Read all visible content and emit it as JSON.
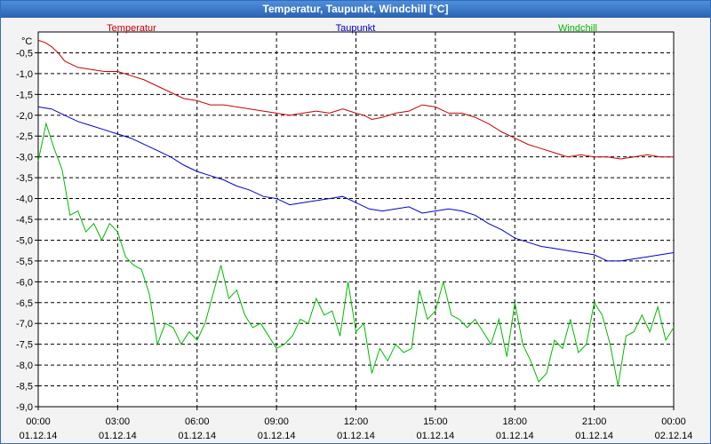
{
  "window": {
    "title": "Temperatur, Taupunkt, Windchill [°C]"
  },
  "chart_data": {
    "type": "line",
    "title": "Temperatur, Taupunkt, Windchill [°C]",
    "ylabel": "°C",
    "ylim": [
      -9.0,
      0.0
    ],
    "y_ticks": [
      "-0,5",
      "-1,0",
      "-1,5",
      "-2,0",
      "-2,5",
      "-3,0",
      "-3,5",
      "-4,0",
      "-4,5",
      "-5,0",
      "-5,5",
      "-6,0",
      "-6,5",
      "-7,0",
      "-7,5",
      "-8,0",
      "-8,5",
      "-9,0"
    ],
    "y_tick_values": [
      -0.5,
      -1.0,
      -1.5,
      -2.0,
      -2.5,
      -3.0,
      -3.5,
      -4.0,
      -4.5,
      -5.0,
      -5.5,
      -6.0,
      -6.5,
      -7.0,
      -7.5,
      -8.0,
      -8.5,
      -9.0
    ],
    "x_ticks": [
      {
        "time": "00:00",
        "date": "01.12.14"
      },
      {
        "time": "03:00",
        "date": "01.12.14"
      },
      {
        "time": "06:00",
        "date": "01.12.14"
      },
      {
        "time": "09:00",
        "date": "01.12.14"
      },
      {
        "time": "12:00",
        "date": "01.12.14"
      },
      {
        "time": "15:00",
        "date": "01.12.14"
      },
      {
        "time": "18:00",
        "date": "01.12.14"
      },
      {
        "time": "21:00",
        "date": "01.12.14"
      },
      {
        "time": "00:00",
        "date": "02.12.14"
      }
    ],
    "xlim_hours": [
      0,
      24
    ],
    "grid": true,
    "series": [
      {
        "name": "Temperatur",
        "color": "#cc0000",
        "x": [
          0,
          0.25,
          0.5,
          0.75,
          1,
          1.5,
          2,
          2.5,
          3,
          3.5,
          4,
          4.5,
          5,
          5.5,
          6,
          6.5,
          7,
          7.5,
          8,
          8.5,
          9,
          9.5,
          10,
          10.5,
          11,
          11.5,
          12,
          12.3,
          12.6,
          13,
          13.5,
          14,
          14.5,
          15,
          15.5,
          16,
          16.5,
          17,
          17.5,
          18,
          18.5,
          19,
          19.5,
          20,
          20.5,
          21,
          21.5,
          22,
          22.5,
          23,
          23.5,
          24
        ],
        "values": [
          -0.2,
          -0.25,
          -0.35,
          -0.5,
          -0.7,
          -0.85,
          -0.9,
          -0.95,
          -0.95,
          -1.05,
          -1.15,
          -1.3,
          -1.45,
          -1.6,
          -1.65,
          -1.75,
          -1.75,
          -1.8,
          -1.85,
          -1.9,
          -1.95,
          -2.0,
          -1.95,
          -1.9,
          -1.95,
          -1.85,
          -1.95,
          -2.0,
          -2.1,
          -2.05,
          -1.95,
          -1.9,
          -1.75,
          -1.8,
          -1.95,
          -1.95,
          -2.05,
          -2.2,
          -2.4,
          -2.55,
          -2.7,
          -2.8,
          -2.9,
          -3.0,
          -2.95,
          -3.0,
          -3.0,
          -3.05,
          -3.0,
          -2.95,
          -3.0,
          -3.0
        ]
      },
      {
        "name": "Taupunkt",
        "color": "#0000cc",
        "x": [
          0,
          0.5,
          1,
          1.5,
          2,
          2.5,
          3,
          3.5,
          4,
          4.5,
          5,
          5.5,
          6,
          6.5,
          7,
          7.5,
          8,
          8.5,
          9,
          9.5,
          10,
          10.5,
          11,
          11.5,
          12,
          12.5,
          13,
          13.5,
          14,
          14.5,
          15,
          15.5,
          16,
          16.5,
          17,
          17.5,
          18,
          18.5,
          19,
          19.5,
          20,
          20.5,
          21,
          21.5,
          22,
          22.5,
          23,
          23.5,
          24
        ],
        "values": [
          -1.8,
          -1.85,
          -2.0,
          -2.15,
          -2.25,
          -2.35,
          -2.45,
          -2.55,
          -2.7,
          -2.85,
          -3.0,
          -3.2,
          -3.35,
          -3.45,
          -3.55,
          -3.7,
          -3.8,
          -3.95,
          -4.0,
          -4.15,
          -4.1,
          -4.05,
          -4.0,
          -3.95,
          -4.1,
          -4.25,
          -4.3,
          -4.25,
          -4.2,
          -4.35,
          -4.3,
          -4.25,
          -4.3,
          -4.4,
          -4.6,
          -4.75,
          -4.95,
          -5.05,
          -5.15,
          -5.2,
          -5.25,
          -5.3,
          -5.35,
          -5.5,
          -5.5,
          -5.45,
          -5.4,
          -5.35,
          -5.3
        ]
      },
      {
        "name": "Windchill",
        "color": "#00bb00",
        "x": [
          0,
          0.3,
          0.6,
          0.9,
          1.2,
          1.5,
          1.8,
          2.1,
          2.4,
          2.7,
          3.0,
          3.3,
          3.6,
          3.9,
          4.2,
          4.5,
          4.8,
          5.1,
          5.4,
          5.7,
          6.0,
          6.3,
          6.6,
          6.9,
          7.2,
          7.5,
          7.8,
          8.1,
          8.4,
          8.7,
          9.0,
          9.3,
          9.6,
          9.9,
          10.2,
          10.5,
          10.8,
          11.1,
          11.4,
          11.7,
          12.0,
          12.3,
          12.6,
          12.9,
          13.2,
          13.5,
          13.8,
          14.1,
          14.4,
          14.7,
          15.0,
          15.3,
          15.6,
          15.9,
          16.2,
          16.5,
          16.8,
          17.1,
          17.4,
          17.7,
          18.0,
          18.3,
          18.6,
          18.9,
          19.2,
          19.5,
          19.8,
          20.1,
          20.4,
          20.7,
          21.0,
          21.3,
          21.6,
          21.9,
          22.2,
          22.5,
          22.8,
          23.1,
          23.4,
          23.7,
          24.0
        ],
        "values": [
          -3.1,
          -2.2,
          -2.8,
          -3.3,
          -4.4,
          -4.3,
          -4.8,
          -4.6,
          -5.0,
          -4.6,
          -4.8,
          -5.4,
          -5.6,
          -5.7,
          -6.3,
          -7.5,
          -7.0,
          -7.1,
          -7.5,
          -7.2,
          -7.4,
          -7.0,
          -6.3,
          -5.6,
          -6.4,
          -6.2,
          -6.8,
          -7.1,
          -7.0,
          -7.3,
          -7.6,
          -7.5,
          -7.3,
          -6.9,
          -7.0,
          -6.4,
          -6.8,
          -6.7,
          -7.3,
          -6.0,
          -7.2,
          -7.0,
          -8.2,
          -7.6,
          -7.9,
          -7.5,
          -7.7,
          -7.6,
          -6.2,
          -6.9,
          -6.7,
          -6.0,
          -6.8,
          -6.9,
          -7.1,
          -6.9,
          -7.2,
          -7.5,
          -6.9,
          -7.8,
          -6.5,
          -7.5,
          -7.9,
          -8.4,
          -8.2,
          -7.4,
          -7.6,
          -6.9,
          -7.7,
          -7.5,
          -6.5,
          -6.8,
          -7.5,
          -8.5,
          -7.3,
          -7.2,
          -6.8,
          -7.2,
          -6.6,
          -7.4,
          -7.1
        ]
      }
    ]
  }
}
